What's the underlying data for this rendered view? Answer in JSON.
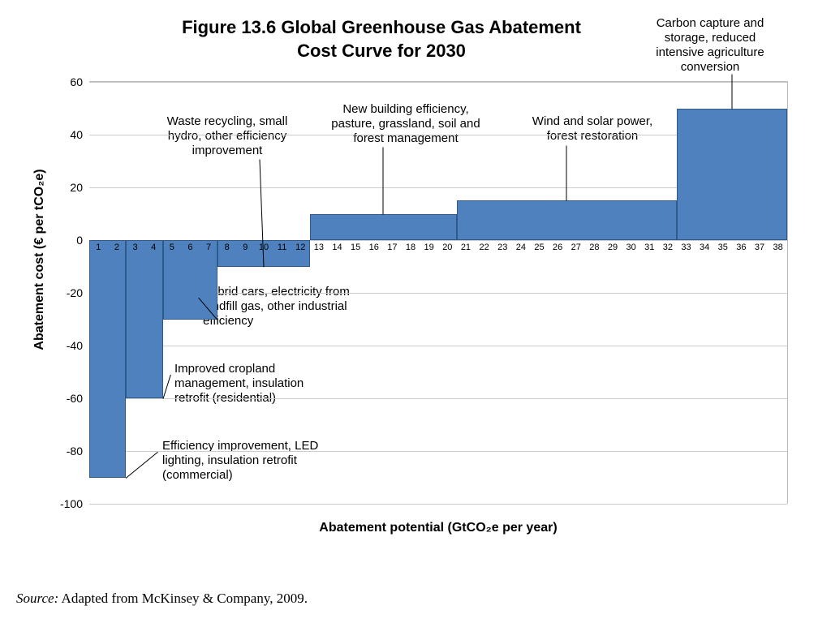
{
  "chart": {
    "type": "step-bar",
    "title": "Figure 13.6 Global Greenhouse Gas Abatement Cost Curve for 2030",
    "ylabel": "Abatement cost (€ per tCO₂e)",
    "xlabel": "Abatement potential (GtCO₂e per year)",
    "background_color": "#ffffff",
    "grid_color": "#cccccc",
    "bar_fill": "#4e81bd",
    "bar_stroke": "#2e5a8a",
    "ylim": [
      -100,
      60
    ],
    "ytick_step": 20,
    "yticks": [
      -100,
      -80,
      -60,
      -40,
      -20,
      0,
      20,
      40,
      60
    ],
    "x_ticks": [
      1,
      2,
      3,
      4,
      5,
      6,
      7,
      8,
      9,
      10,
      11,
      12,
      13,
      14,
      15,
      16,
      17,
      18,
      19,
      20,
      21,
      22,
      23,
      24,
      25,
      26,
      27,
      28,
      29,
      30,
      31,
      32,
      33,
      34,
      35,
      36,
      37,
      38
    ],
    "segments": [
      {
        "x_start": 0,
        "x_end": 2,
        "cost": -90,
        "label": "Efficiency improvement, LED lighting, insulation retrofit (commercial)"
      },
      {
        "x_start": 2,
        "x_end": 4,
        "cost": -60,
        "label": "Improved cropland management, insulation retrofit (residential)"
      },
      {
        "x_start": 4,
        "x_end": 7,
        "cost": -30,
        "label": "Hybrid cars, electricity from landfill gas, other industrial efficiency"
      },
      {
        "x_start": 7,
        "x_end": 12,
        "cost": -10,
        "label": "Waste recycling, small hydro, other efficiency improvement"
      },
      {
        "x_start": 12,
        "x_end": 20,
        "cost": 10,
        "label": "New building efficiency, pasture, grassland, soil and forest management"
      },
      {
        "x_start": 20,
        "x_end": 32,
        "cost": 15,
        "label": "Wind and solar power, forest restoration"
      },
      {
        "x_start": 32,
        "x_end": 38,
        "cost": 50,
        "label": "Carbon capture and storage, reduced intensive agriculture conversion"
      }
    ],
    "title_fontsize": 22,
    "axis_label_fontsize": 16,
    "annotation_fontsize": 15,
    "tick_fontsize_y": 14,
    "tick_fontsize_x": 11
  },
  "annotations": {
    "a1": "Efficiency improvement, LED lighting, insulation retrofit (commercial)",
    "a2": "Improved cropland management, insulation retrofit (residential)",
    "a3": "Hybrid cars, electricity from landfill gas, other industrial efficiency",
    "a4": "Waste recycling, small hydro, other efficiency improvement",
    "a5": "New building efficiency, pasture, grassland, soil and forest management",
    "a6": "Wind and solar power, forest restoration",
    "a7": "Carbon capture and storage, reduced intensive agriculture conversion"
  },
  "source_label": "Source:",
  "source_text": " Adapted from McKinsey & Company, 2009."
}
